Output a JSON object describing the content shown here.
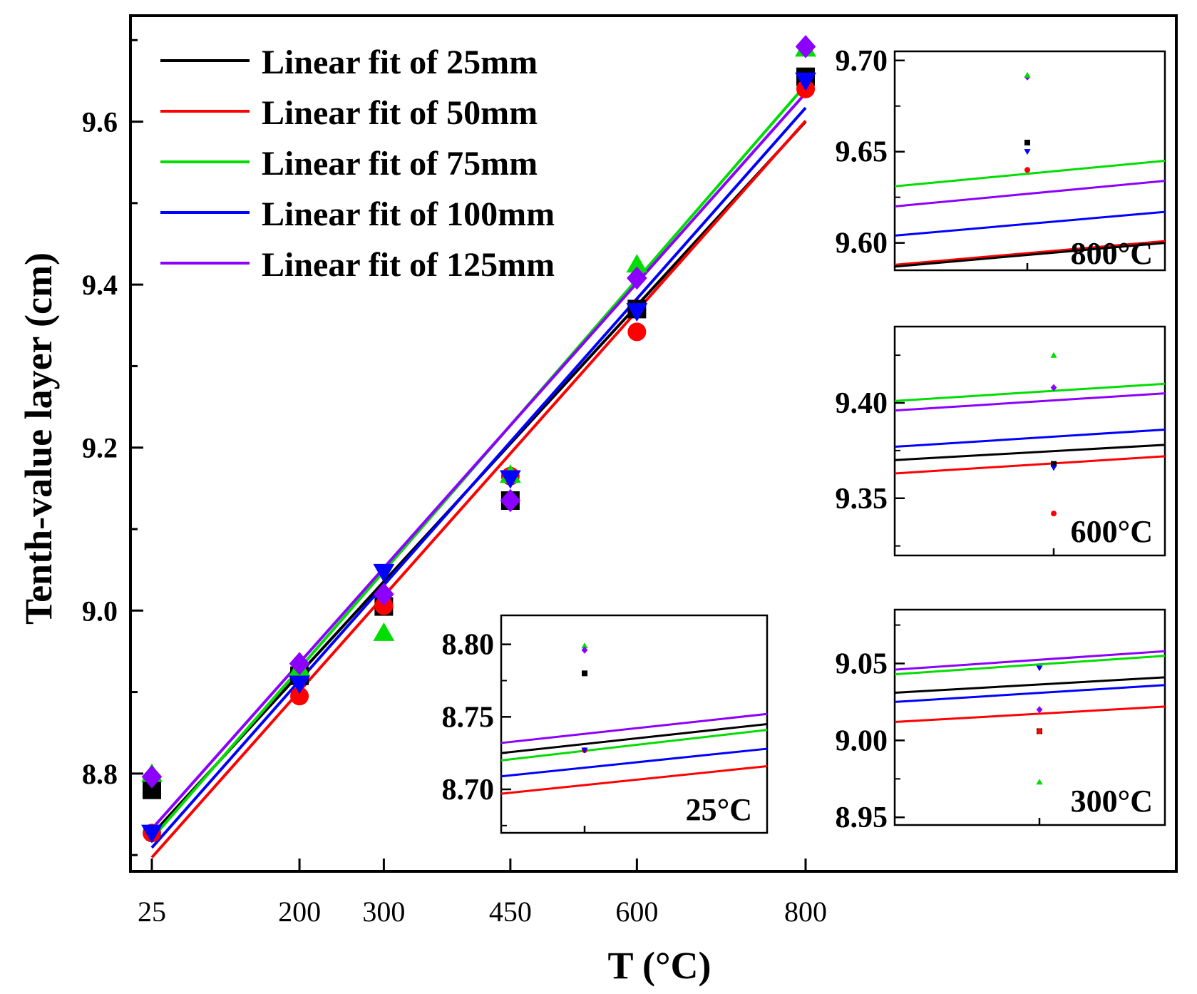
{
  "chart_data": {
    "type": "scatter",
    "xlabel": "T (°C)",
    "ylabel": "Tenth-value layer (cm)",
    "x_ticks": [
      25,
      200,
      300,
      450,
      600,
      800
    ],
    "xlim": [
      0,
      800
    ],
    "ylim": [
      8.68,
      9.73
    ],
    "y_ticks": [
      "8.8",
      "9.0",
      "9.2",
      "9.4",
      "9.6"
    ],
    "legend_position": "top-left",
    "series": [
      {
        "name": "25mm",
        "fit_label": "Linear fit of 25mm",
        "color": "#000000",
        "marker": "square",
        "x": [
          25,
          200,
          300,
          450,
          600,
          800
        ],
        "y": [
          8.78,
          8.92,
          9.005,
          9.135,
          9.37,
          9.655
        ],
        "fit": [
          [
            25,
            8.725
          ],
          [
            800,
            9.6
          ]
        ]
      },
      {
        "name": "50mm",
        "fit_label": "Linear fit of 50mm",
        "color": "#ff0000",
        "marker": "circle",
        "x": [
          25,
          200,
          300,
          450,
          600,
          800
        ],
        "y": [
          8.727,
          8.895,
          9.006,
          9.165,
          9.342,
          9.64
        ],
        "fit": [
          [
            25,
            8.697
          ],
          [
            800,
            9.601
          ]
        ]
      },
      {
        "name": "75mm",
        "fit_label": "Linear fit of 75mm",
        "color": "#00dd00",
        "marker": "triangle-up",
        "x": [
          25,
          200,
          300,
          450,
          600,
          800
        ],
        "y": [
          8.8,
          8.93,
          8.973,
          9.167,
          9.425,
          9.69
        ],
        "fit": [
          [
            25,
            8.72
          ],
          [
            800,
            9.645
          ]
        ]
      },
      {
        "name": "100mm",
        "fit_label": "Linear fit of 100mm",
        "color": "#0000ff",
        "marker": "triangle-down",
        "x": [
          25,
          200,
          300,
          450,
          600,
          800
        ],
        "y": [
          8.727,
          8.91,
          9.047,
          9.162,
          9.367,
          9.65
        ],
        "fit": [
          [
            25,
            8.709
          ],
          [
            800,
            9.617
          ]
        ]
      },
      {
        "name": "125mm",
        "fit_label": "Linear fit of 125mm",
        "color": "#8b00ff",
        "marker": "diamond",
        "x": [
          25,
          200,
          300,
          450,
          600,
          800
        ],
        "y": [
          8.796,
          8.935,
          9.02,
          9.135,
          9.408,
          9.692
        ],
        "fit": [
          [
            25,
            8.732
          ],
          [
            800,
            9.635
          ]
        ]
      }
    ],
    "insets": [
      {
        "title": "25°C",
        "ylim": [
          8.67,
          8.82
        ],
        "y_ticks": [
          "8.70",
          "8.75",
          "8.80"
        ],
        "points": [
          {
            "series": "75mm",
            "y": 8.799
          },
          {
            "series": "125mm",
            "y": 8.796
          },
          {
            "series": "25mm",
            "y": 8.78
          },
          {
            "series": "50mm",
            "y": 8.727
          },
          {
            "series": "100mm",
            "y": 8.727
          }
        ],
        "fits": [
          {
            "series": "125mm",
            "y0": 8.732,
            "y1": 8.752
          },
          {
            "series": "25mm",
            "y0": 8.725,
            "y1": 8.745
          },
          {
            "series": "75mm",
            "y0": 8.72,
            "y1": 8.741
          },
          {
            "series": "100mm",
            "y0": 8.709,
            "y1": 8.728
          },
          {
            "series": "50mm",
            "y0": 8.697,
            "y1": 8.716
          }
        ]
      },
      {
        "title": "300°C",
        "ylim": [
          8.945,
          9.085
        ],
        "y_ticks": [
          "8.95",
          "9.00",
          "9.05"
        ],
        "points": [
          {
            "series": "100mm",
            "y": 9.047
          },
          {
            "series": "125mm",
            "y": 9.02
          },
          {
            "series": "25mm",
            "y": 9.006
          },
          {
            "series": "50mm",
            "y": 9.006
          },
          {
            "series": "75mm",
            "y": 8.973
          }
        ],
        "fits": [
          {
            "series": "125mm",
            "y0": 9.046,
            "y1": 9.058
          },
          {
            "series": "75mm",
            "y0": 9.043,
            "y1": 9.055
          },
          {
            "series": "25mm",
            "y0": 9.031,
            "y1": 9.041
          },
          {
            "series": "100mm",
            "y0": 9.025,
            "y1": 9.036
          },
          {
            "series": "50mm",
            "y0": 9.012,
            "y1": 9.022
          }
        ]
      },
      {
        "title": "600°C",
        "ylim": [
          9.32,
          9.44
        ],
        "y_ticks": [
          "9.35",
          "9.40"
        ],
        "points": [
          {
            "series": "75mm",
            "y": 9.425
          },
          {
            "series": "125mm",
            "y": 9.408
          },
          {
            "series": "25mm",
            "y": 9.368
          },
          {
            "series": "100mm",
            "y": 9.366
          },
          {
            "series": "50mm",
            "y": 9.342
          }
        ],
        "fits": [
          {
            "series": "75mm",
            "y0": 9.401,
            "y1": 9.41
          },
          {
            "series": "125mm",
            "y0": 9.396,
            "y1": 9.405
          },
          {
            "series": "100mm",
            "y0": 9.377,
            "y1": 9.386
          },
          {
            "series": "25mm",
            "y0": 9.37,
            "y1": 9.378
          },
          {
            "series": "50mm",
            "y0": 9.363,
            "y1": 9.372
          }
        ]
      },
      {
        "title": "800°C",
        "ylim": [
          9.585,
          9.705
        ],
        "y_ticks": [
          "9.60",
          "9.65",
          "9.70"
        ],
        "points": [
          {
            "series": "125mm",
            "y": 9.691
          },
          {
            "series": "75mm",
            "y": 9.692
          },
          {
            "series": "25mm",
            "y": 9.655
          },
          {
            "series": "100mm",
            "y": 9.65
          },
          {
            "series": "50mm",
            "y": 9.64
          }
        ],
        "fits": [
          {
            "series": "75mm",
            "y0": 9.631,
            "y1": 9.645
          },
          {
            "series": "125mm",
            "y0": 9.62,
            "y1": 9.634
          },
          {
            "series": "100mm",
            "y0": 9.604,
            "y1": 9.617
          },
          {
            "series": "50mm",
            "y0": 9.588,
            "y1": 9.601
          },
          {
            "series": "25mm",
            "y0": 9.587,
            "y1": 9.6
          }
        ]
      }
    ]
  }
}
